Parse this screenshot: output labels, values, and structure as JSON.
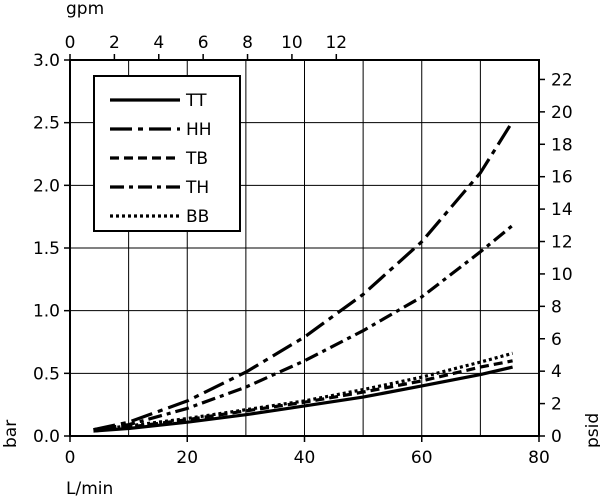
{
  "chart_data": {
    "type": "line",
    "x_unit_bottom": "L/min",
    "x_unit_top": "gpm",
    "y_unit_left": "bar",
    "y_unit_right": "psid",
    "xlim": [
      0,
      80
    ],
    "ylim": [
      0,
      3.0
    ],
    "top_xlim_gpm": [
      0,
      21.134
    ],
    "right_ylim_psid": [
      0,
      23.2
    ],
    "grid": true,
    "legend_position": "top-left",
    "x_ticks": [
      0,
      20,
      40,
      60,
      80
    ],
    "x_tick_labels": [
      "0",
      "20",
      "40",
      "60",
      "80"
    ],
    "y_ticks": [
      0,
      0.5,
      1.0,
      1.5,
      2.0,
      2.5,
      3.0
    ],
    "y_tick_labels": [
      "0.0",
      "0.5",
      "1.0",
      "1.5",
      "2.0",
      "2.5",
      "3.0"
    ],
    "top_ticks_gpm": [
      0,
      2,
      4,
      6,
      8,
      10,
      12
    ],
    "top_tick_labels": [
      "0",
      "2",
      "4",
      "6",
      "8",
      "10",
      "12"
    ],
    "right_ticks_psid": [
      0,
      2,
      4,
      6,
      8,
      10,
      12,
      14,
      16,
      18,
      20,
      22
    ],
    "right_tick_labels": [
      "0",
      "2",
      "4",
      "6",
      "8",
      "10",
      "12",
      "14",
      "16",
      "18",
      "20",
      "22"
    ],
    "series": [
      {
        "name": "TT",
        "style": "solid",
        "x": [
          4,
          10,
          20,
          30,
          40,
          50,
          60,
          70,
          75.5
        ],
        "y": [
          0.04,
          0.06,
          0.11,
          0.17,
          0.24,
          0.31,
          0.4,
          0.49,
          0.55
        ]
      },
      {
        "name": "HH",
        "style": "long-dash-dot",
        "x": [
          4,
          10,
          20,
          30,
          40,
          50,
          60,
          70,
          75.5
        ],
        "y": [
          0.05,
          0.11,
          0.28,
          0.51,
          0.79,
          1.13,
          1.55,
          2.1,
          2.51
        ]
      },
      {
        "name": "TB",
        "style": "dashed",
        "x": [
          4,
          10,
          20,
          30,
          40,
          50,
          60,
          70,
          75.5
        ],
        "y": [
          0.04,
          0.07,
          0.13,
          0.2,
          0.27,
          0.35,
          0.44,
          0.55,
          0.6
        ]
      },
      {
        "name": "TH",
        "style": "dash-dot",
        "x": [
          4,
          10,
          20,
          30,
          40,
          50,
          60,
          70,
          75.5
        ],
        "y": [
          0.05,
          0.09,
          0.22,
          0.39,
          0.6,
          0.84,
          1.11,
          1.47,
          1.68
        ]
      },
      {
        "name": "BB",
        "style": "dotted",
        "x": [
          4,
          10,
          20,
          30,
          40,
          50,
          60,
          70,
          75.5
        ],
        "y": [
          0.05,
          0.08,
          0.14,
          0.21,
          0.28,
          0.37,
          0.47,
          0.59,
          0.66
        ]
      }
    ]
  }
}
